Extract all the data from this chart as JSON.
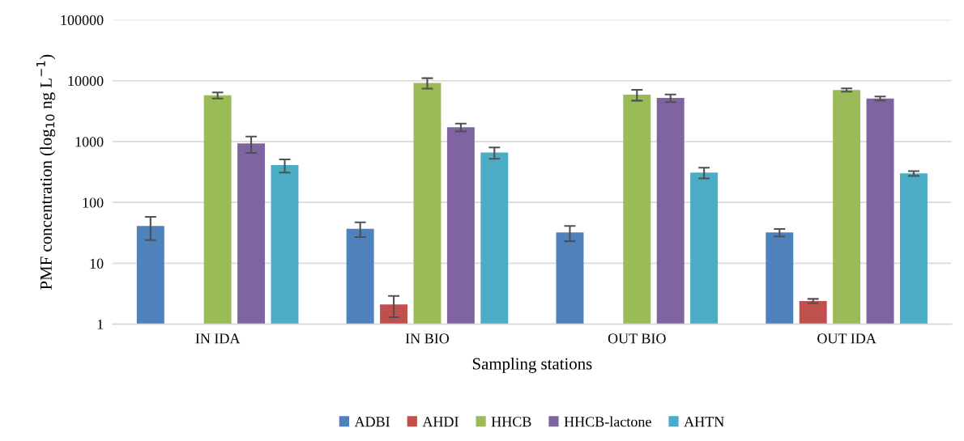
{
  "chart_data": {
    "type": "bar",
    "xlabel": "Sampling stations",
    "ylabel": "PMF concentration (log$_{10}$ ng L$^{−1}$)",
    "categories": [
      "IN IDA",
      "IN BIO",
      "OUT BIO",
      "OUT IDA"
    ],
    "series": [
      {
        "name": "ADBI",
        "color": "#4f81bd",
        "values": [
          41,
          37,
          32,
          32
        ],
        "errors": [
          17,
          10,
          9,
          4.5
        ]
      },
      {
        "name": "AHDI",
        "color": "#c0504d",
        "values": [
          null,
          2.1,
          null,
          2.4
        ],
        "errors": [
          null,
          0.8,
          null,
          0.2
        ]
      },
      {
        "name": "HHCB",
        "color": "#9bbb59",
        "values": [
          5750,
          9200,
          5900,
          7050
        ],
        "errors": [
          650,
          1800,
          1200,
          430
        ]
      },
      {
        "name": "HHCB-lactone",
        "color": "#8064a2",
        "values": [
          930,
          1720,
          5200,
          5100
        ],
        "errors": [
          280,
          250,
          750,
          390
        ]
      },
      {
        "name": "AHTN",
        "color": "#4bacc6",
        "values": [
          410,
          660,
          310,
          300
        ],
        "errors": [
          100,
          140,
          62,
          27
        ]
      }
    ],
    "log": true,
    "ylim": [
      1,
      100000
    ],
    "yticks": [
      1,
      10,
      100,
      1000,
      10000,
      100000
    ],
    "grid": "y",
    "legend": "bottom"
  }
}
